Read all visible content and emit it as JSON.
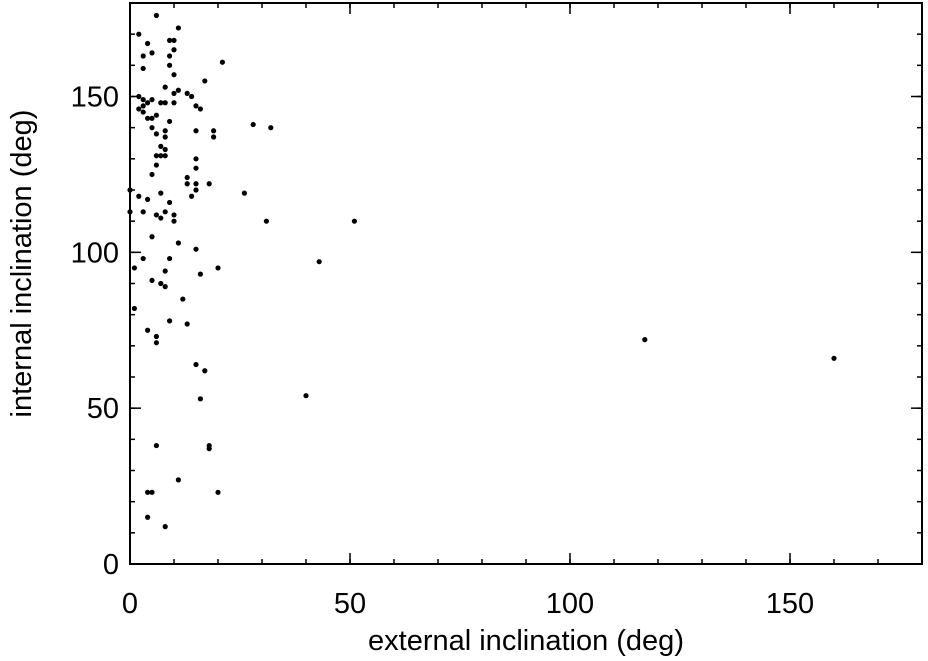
{
  "chart_data": {
    "type": "scatter",
    "title": "",
    "xlabel": "external inclination (deg)",
    "ylabel": "internal inclination (deg)",
    "xlim": [
      0,
      180
    ],
    "ylim": [
      0,
      180
    ],
    "x_ticks": [
      0,
      50,
      100,
      150
    ],
    "y_ticks": [
      0,
      50,
      100,
      150
    ],
    "x_tick_labels": [
      "0",
      "50",
      "100",
      "150"
    ],
    "y_tick_labels": [
      "0",
      "50",
      "100",
      "150"
    ],
    "x_minor_step": 10,
    "y_minor_step": 10,
    "grid": false,
    "legend": "none",
    "marker_color": "#000000",
    "points": [
      [
        6,
        176
      ],
      [
        2,
        170
      ],
      [
        11,
        172
      ],
      [
        4,
        167
      ],
      [
        9,
        168
      ],
      [
        10,
        168
      ],
      [
        3,
        163
      ],
      [
        5,
        164
      ],
      [
        9,
        163
      ],
      [
        10,
        165
      ],
      [
        21,
        161
      ],
      [
        3,
        159
      ],
      [
        9,
        160
      ],
      [
        10,
        157
      ],
      [
        17,
        155
      ],
      [
        8,
        153
      ],
      [
        11,
        152
      ],
      [
        7,
        148
      ],
      [
        10,
        151
      ],
      [
        13,
        151
      ],
      [
        14,
        150
      ],
      [
        2,
        150
      ],
      [
        3,
        149
      ],
      [
        3,
        147
      ],
      [
        4,
        148
      ],
      [
        5,
        149
      ],
      [
        2,
        146
      ],
      [
        3,
        145
      ],
      [
        4,
        143
      ],
      [
        5,
        143
      ],
      [
        6,
        144
      ],
      [
        8,
        148
      ],
      [
        10,
        148
      ],
      [
        15,
        147
      ],
      [
        16,
        146
      ],
      [
        9,
        142
      ],
      [
        28,
        141
      ],
      [
        32,
        140
      ],
      [
        5,
        140
      ],
      [
        6,
        138
      ],
      [
        8,
        139
      ],
      [
        8,
        137
      ],
      [
        15,
        139
      ],
      [
        19,
        139
      ],
      [
        19,
        137
      ],
      [
        7,
        134
      ],
      [
        8,
        133
      ],
      [
        6,
        131
      ],
      [
        7,
        131
      ],
      [
        8,
        131
      ],
      [
        15,
        130
      ],
      [
        6,
        128
      ],
      [
        15,
        127
      ],
      [
        5,
        125
      ],
      [
        13,
        124
      ],
      [
        13,
        122
      ],
      [
        15,
        122
      ],
      [
        18,
        122
      ],
      [
        14,
        118
      ],
      [
        15,
        120
      ],
      [
        26,
        119
      ],
      [
        0,
        120
      ],
      [
        2,
        118
      ],
      [
        4,
        117
      ],
      [
        7,
        119
      ],
      [
        9,
        116
      ],
      [
        0,
        113
      ],
      [
        3,
        113
      ],
      [
        8,
        113
      ],
      [
        10,
        112
      ],
      [
        6,
        112
      ],
      [
        7,
        111
      ],
      [
        10,
        110
      ],
      [
        31,
        110
      ],
      [
        51,
        110
      ],
      [
        5,
        105
      ],
      [
        11,
        103
      ],
      [
        15,
        101
      ],
      [
        3,
        98
      ],
      [
        9,
        98
      ],
      [
        43,
        97
      ],
      [
        1,
        95
      ],
      [
        8,
        94
      ],
      [
        16,
        93
      ],
      [
        20,
        95
      ],
      [
        5,
        91
      ],
      [
        7,
        90
      ],
      [
        8,
        89
      ],
      [
        12,
        85
      ],
      [
        1,
        82
      ],
      [
        9,
        78
      ],
      [
        13,
        77
      ],
      [
        4,
        75
      ],
      [
        6,
        73
      ],
      [
        6,
        71
      ],
      [
        117,
        72
      ],
      [
        160,
        66
      ],
      [
        15,
        64
      ],
      [
        17,
        62
      ],
      [
        16,
        53
      ],
      [
        40,
        54
      ],
      [
        6,
        38
      ],
      [
        18,
        38
      ],
      [
        18,
        37
      ],
      [
        4,
        23
      ],
      [
        5,
        23
      ],
      [
        11,
        27
      ],
      [
        20,
        23
      ],
      [
        4,
        15
      ],
      [
        8,
        12
      ]
    ]
  }
}
